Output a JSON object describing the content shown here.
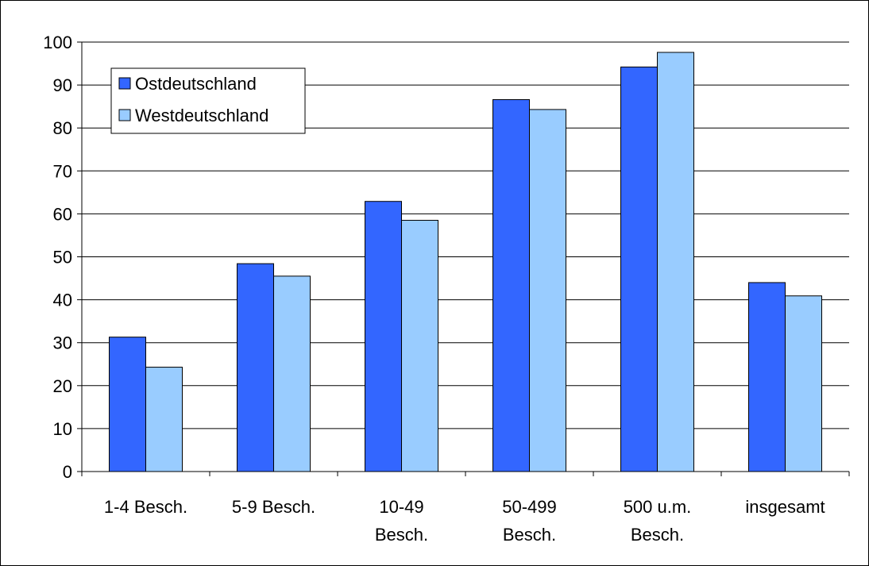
{
  "chart_data": {
    "type": "bar",
    "categories": [
      [
        "1-4 Besch."
      ],
      [
        "5-9 Besch."
      ],
      [
        "10-49",
        "Besch."
      ],
      [
        "50-499",
        "Besch."
      ],
      [
        "500 u.m.",
        "Besch."
      ],
      [
        "insgesamt"
      ]
    ],
    "series": [
      {
        "name": "Ostdeutschland",
        "color": "#3366FF",
        "values": [
          31.3,
          48.4,
          62.9,
          86.6,
          94.2,
          44.0
        ]
      },
      {
        "name": "Westdeutschland",
        "color": "#99CCFF",
        "values": [
          24.3,
          45.5,
          58.5,
          84.3,
          97.6,
          40.9
        ]
      }
    ],
    "ylim": [
      0,
      100
    ],
    "yticks": [
      0,
      10,
      20,
      30,
      40,
      50,
      60,
      70,
      80,
      90,
      100
    ],
    "grid": true,
    "legend": "top-left"
  }
}
